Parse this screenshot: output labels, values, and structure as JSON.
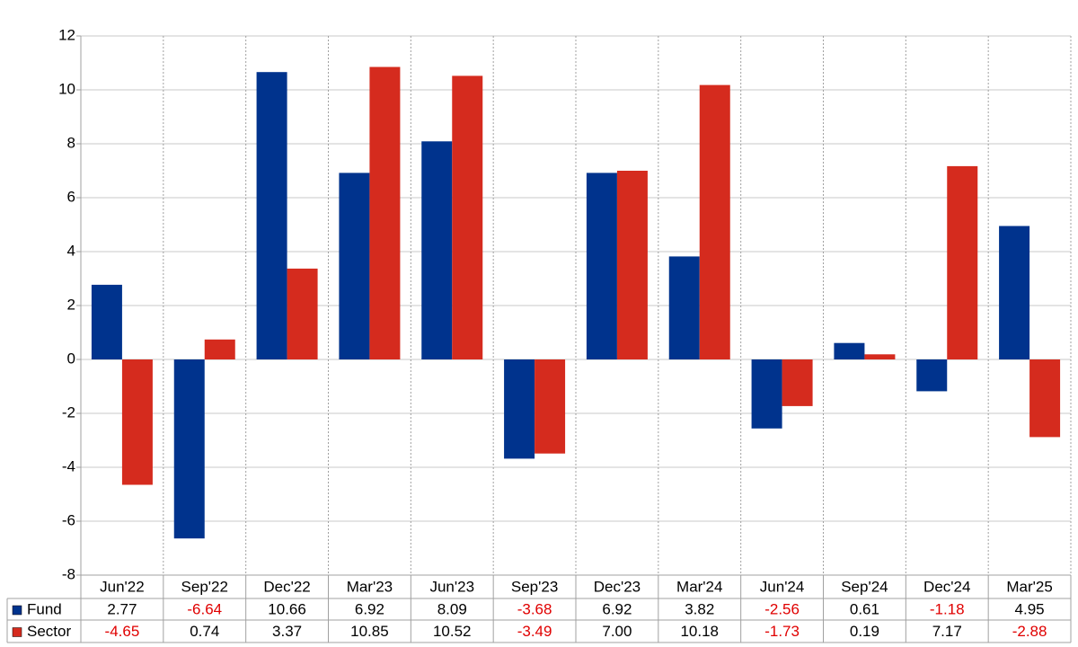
{
  "chart_data": {
    "type": "bar",
    "categories": [
      "Jun'22",
      "Sep'22",
      "Dec'22",
      "Mar'23",
      "Jun'23",
      "Sep'23",
      "Dec'23",
      "Mar'24",
      "Jun'24",
      "Sep'24",
      "Dec'24",
      "Mar'25"
    ],
    "series": [
      {
        "name": "Fund",
        "color": "#00338d",
        "values": [
          2.77,
          -6.64,
          10.66,
          6.92,
          8.09,
          -3.68,
          6.92,
          3.82,
          -2.56,
          0.61,
          -1.18,
          4.95
        ],
        "value_labels": [
          "2.77",
          "-6.64",
          "10.66",
          "6.92",
          "8.09",
          "-3.68",
          "6.92",
          "3.82",
          "-2.56",
          "0.61",
          "-1.18",
          "4.95"
        ]
      },
      {
        "name": "Sector",
        "color": "#d52b1e",
        "values": [
          -4.65,
          0.74,
          3.37,
          10.85,
          10.52,
          -3.49,
          7.0,
          10.18,
          -1.73,
          0.19,
          7.17,
          -2.88
        ],
        "value_labels": [
          "-4.65",
          "0.74",
          "3.37",
          "10.85",
          "10.52",
          "-3.49",
          "7.00",
          "10.18",
          "-1.73",
          "0.19",
          "7.17",
          "-2.88"
        ]
      }
    ],
    "ylim": [
      -8,
      12
    ],
    "yticks": [
      -8,
      -6,
      -4,
      -2,
      0,
      2,
      4,
      6,
      8,
      10,
      12
    ],
    "grid": true
  }
}
